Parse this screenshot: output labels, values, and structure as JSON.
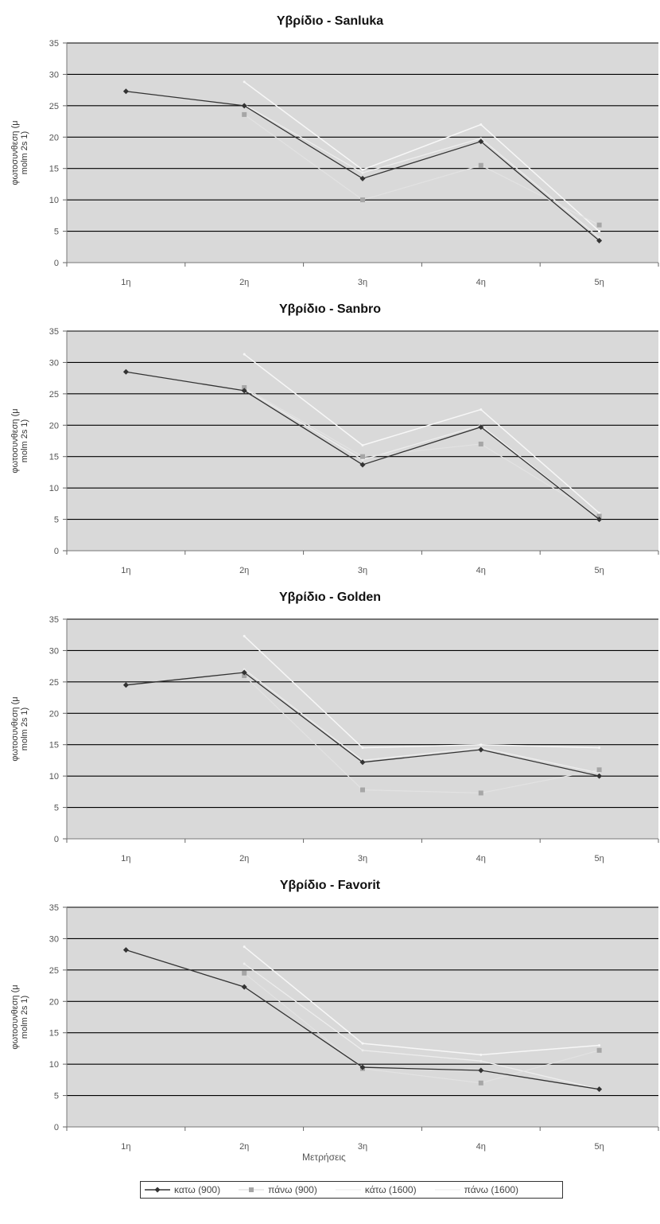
{
  "colors": {
    "plot_bg": "#d9d9d9",
    "gridline": "#000000",
    "series_kato_900": "#333333",
    "series_pano_900": "#a6a6a6",
    "series_kato_1600": "#ededed",
    "series_pano_1600": "#f7f7f7"
  },
  "xlabel": "Μετρήσεις",
  "legend": [
    "κατω (900)",
    "πάνω (900)",
    "κάτω (1600)",
    "πάνω (1600)"
  ],
  "chart_data": [
    {
      "type": "line",
      "title": "Υβρίδιο - Sanluka",
      "ylabel": "φωτοσυνθεση (μ molm 2s 1)",
      "categories": [
        "1η",
        "2η",
        "3η",
        "4η",
        "5η"
      ],
      "ylim": [
        0,
        35
      ],
      "yticks": [
        0,
        5,
        10,
        15,
        20,
        25,
        30,
        35
      ],
      "grid": true,
      "series": [
        {
          "name": "κατω (900)",
          "values": [
            27.3,
            25,
            13.4,
            19.3,
            3.5
          ]
        },
        {
          "name": "πάνω (900)",
          "values": [
            null,
            23.6,
            10,
            15.5,
            6
          ]
        },
        {
          "name": "κάτω (1600)",
          "values": [
            null,
            25.2,
            14.3,
            19.8,
            4
          ]
        },
        {
          "name": "πάνω (1600)",
          "values": [
            null,
            28.8,
            14.8,
            22,
            5
          ]
        }
      ]
    },
    {
      "type": "line",
      "title": "Υβρίδιο - Sanbro",
      "ylabel": "φωτοσυνθεση (μ molm 2s 1)",
      "categories": [
        "1η",
        "2η",
        "3η",
        "4η",
        "5η"
      ],
      "ylim": [
        0,
        35
      ],
      "yticks": [
        0,
        5,
        10,
        15,
        20,
        25,
        30,
        35
      ],
      "grid": true,
      "series": [
        {
          "name": "κατω (900)",
          "values": [
            28.5,
            25.5,
            13.7,
            19.7,
            5
          ]
        },
        {
          "name": "πάνω (900)",
          "values": [
            null,
            26,
            15,
            17,
            5.5
          ]
        },
        {
          "name": "κάτω (1600)",
          "values": [
            null,
            25.8,
            14.5,
            20,
            5
          ]
        },
        {
          "name": "πάνω (1600)",
          "values": [
            null,
            31.3,
            16.8,
            22.5,
            6
          ]
        }
      ]
    },
    {
      "type": "line",
      "title": "Υβρίδιο - Golden",
      "ylabel": "φωτοσυνθεση (μ molm 2s 1)",
      "categories": [
        "1η",
        "2η",
        "3η",
        "4η",
        "5η"
      ],
      "ylim": [
        0,
        35
      ],
      "yticks": [
        0,
        5,
        10,
        15,
        20,
        25,
        30,
        35
      ],
      "grid": true,
      "series": [
        {
          "name": "κατω (900)",
          "values": [
            24.5,
            26.5,
            12.2,
            14.2,
            10
          ]
        },
        {
          "name": "πάνω (900)",
          "values": [
            null,
            26,
            7.8,
            7.3,
            11
          ]
        },
        {
          "name": "κάτω (1600)",
          "values": [
            null,
            27,
            12.5,
            14.5,
            10.5
          ]
        },
        {
          "name": "πάνω (1600)",
          "values": [
            null,
            32.3,
            14.5,
            15,
            14.5
          ]
        }
      ]
    },
    {
      "type": "line",
      "title": "Υβρίδιο - Favorit",
      "ylabel": "φωτοσυνθεση (μ molm 2s 1)",
      "categories": [
        "1η",
        "2η",
        "3η",
        "4η",
        "5η"
      ],
      "ylim": [
        0,
        35
      ],
      "yticks": [
        0,
        5,
        10,
        15,
        20,
        25,
        30,
        35
      ],
      "grid": true,
      "series": [
        {
          "name": "κατω (900)",
          "values": [
            28.2,
            22.3,
            9.5,
            9,
            6
          ]
        },
        {
          "name": "πάνω (900)",
          "values": [
            null,
            24.5,
            9.3,
            7,
            12.2
          ]
        },
        {
          "name": "κάτω (1600)",
          "values": [
            null,
            26,
            12.2,
            10.5,
            6
          ]
        },
        {
          "name": "πάνω (1600)",
          "values": [
            null,
            28.7,
            13.3,
            11.5,
            13
          ]
        }
      ]
    }
  ]
}
